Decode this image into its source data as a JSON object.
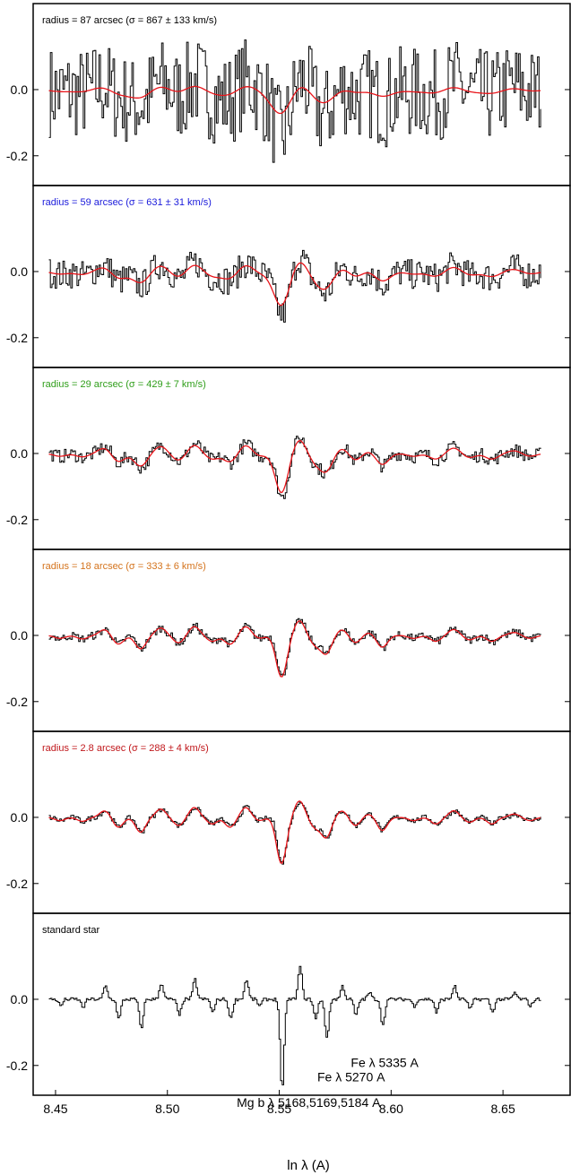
{
  "chart_data": {
    "type": "line",
    "xlabel": "ln λ  (A)",
    "xlim": [
      8.44,
      8.68
    ],
    "ylim": [
      -0.29,
      0.26
    ],
    "x_ticks": [
      "8.45",
      "8.50",
      "8.55",
      "8.60",
      "8.65"
    ],
    "y_ticks": [
      "0.0",
      "-0.2"
    ],
    "colors": {
      "data": "#000000",
      "model": "#e8141a"
    },
    "panels": [
      {
        "label": "radius = 87 arcsec  (σ = 867 ± 133 km/s)",
        "label_color": "#000000",
        "has_model": true,
        "noise": 0.14,
        "data_amp": 1.0,
        "model_amp": 0.55,
        "model_width_scale": 2.6
      },
      {
        "label": "radius = 59 arcsec  (σ = 631 ± 31 km/s)",
        "label_color": "#1a1adb",
        "has_model": true,
        "noise": 0.045,
        "data_amp": 0.95,
        "model_amp": 0.75,
        "model_width_scale": 2.0
      },
      {
        "label": "radius = 29 arcsec  (σ = 429 ± 7 km/s)",
        "label_color": "#2f9e1a",
        "has_model": true,
        "noise": 0.02,
        "data_amp": 0.95,
        "model_amp": 0.85,
        "model_width_scale": 1.6
      },
      {
        "label": "radius = 18 arcsec  (σ = 333 ± 6 km/s)",
        "label_color": "#d4731c",
        "has_model": true,
        "noise": 0.012,
        "data_amp": 0.9,
        "model_amp": 0.9,
        "model_width_scale": 1.35
      },
      {
        "label": "radius = 2.8 arcsec  (σ = 288 ± 4 km/s)",
        "label_color": "#c0171b",
        "has_model": true,
        "noise": 0.008,
        "data_amp": 1.0,
        "model_amp": 1.0,
        "model_width_scale": 1.25
      },
      {
        "label": "standard star",
        "label_color": "#000000",
        "has_model": false,
        "noise": 0.005,
        "data_amp": 2.0,
        "model_amp": 0,
        "model_width_scale": 0.55
      }
    ],
    "annotations": [
      {
        "text": "Fe λ 5335 A",
        "x": 8.582,
        "y": -0.205
      },
      {
        "text": "Fe λ 5270 A",
        "x": 8.567,
        "y": -0.248
      },
      {
        "text": "Mg b λ 5168,5169,5184 A",
        "x": 8.531,
        "y": -0.325
      }
    ],
    "absorption_features": [
      {
        "x": 8.452,
        "depth": -0.01
      },
      {
        "x": 8.462,
        "depth": -0.012
      },
      {
        "x": 8.472,
        "depth": 0.02
      },
      {
        "x": 8.478,
        "depth": -0.03
      },
      {
        "x": 8.488,
        "depth": -0.045
      },
      {
        "x": 8.497,
        "depth": 0.025
      },
      {
        "x": 8.505,
        "depth": -0.025
      },
      {
        "x": 8.512,
        "depth": 0.03
      },
      {
        "x": 8.52,
        "depth": -0.02
      },
      {
        "x": 8.528,
        "depth": -0.03
      },
      {
        "x": 8.535,
        "depth": 0.03
      },
      {
        "x": 8.541,
        "depth": -0.01
      },
      {
        "x": 8.551,
        "depth": -0.14
      },
      {
        "x": 8.559,
        "depth": 0.05
      },
      {
        "x": 8.566,
        "depth": -0.03
      },
      {
        "x": 8.571,
        "depth": -0.06
      },
      {
        "x": 8.578,
        "depth": 0.02
      },
      {
        "x": 8.584,
        "depth": -0.025
      },
      {
        "x": 8.59,
        "depth": 0.01
      },
      {
        "x": 8.596,
        "depth": -0.04
      },
      {
        "x": 8.61,
        "depth": -0.01
      },
      {
        "x": 8.62,
        "depth": -0.02
      },
      {
        "x": 8.628,
        "depth": 0.02
      },
      {
        "x": 8.635,
        "depth": -0.015
      },
      {
        "x": 8.645,
        "depth": -0.02
      },
      {
        "x": 8.655,
        "depth": 0.01
      },
      {
        "x": 8.662,
        "depth": -0.01
      }
    ]
  }
}
